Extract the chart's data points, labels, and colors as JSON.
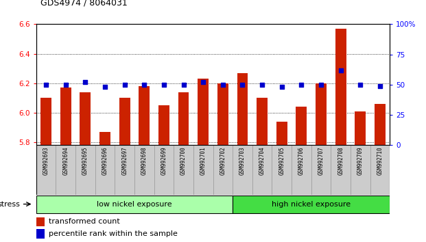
{
  "title": "GDS4974 / 8064031",
  "samples": [
    "GSM992693",
    "GSM992694",
    "GSM992695",
    "GSM992696",
    "GSM992697",
    "GSM992698",
    "GSM992699",
    "GSM992700",
    "GSM992701",
    "GSM992702",
    "GSM992703",
    "GSM992704",
    "GSM992705",
    "GSM992706",
    "GSM992707",
    "GSM992708",
    "GSM992709",
    "GSM992710"
  ],
  "transformed_count": [
    6.1,
    6.17,
    6.14,
    5.87,
    6.1,
    6.18,
    6.05,
    6.14,
    6.23,
    6.2,
    6.27,
    6.1,
    5.94,
    6.04,
    6.2,
    6.57,
    6.01,
    6.06
  ],
  "percentile_rank": [
    50,
    50,
    52,
    48,
    50,
    50,
    50,
    50,
    52,
    50,
    50,
    50,
    48,
    50,
    50,
    62,
    50,
    49
  ],
  "low_nickel_count": 10,
  "high_nickel_count": 8,
  "ymin": 5.78,
  "ymax": 6.6,
  "yticks_left": [
    5.8,
    6.0,
    6.2,
    6.4,
    6.6
  ],
  "yticks_right": [
    0,
    25,
    50,
    75,
    100
  ],
  "bar_color": "#cc2200",
  "marker_color": "#0000cc",
  "low_nickel_color": "#aaffaa",
  "high_nickel_color": "#44dd44",
  "cell_bg_color": "#cccccc",
  "cell_border_color": "#999999",
  "plot_bg": "#ffffff",
  "stress_label": "stress",
  "low_label": "low nickel exposure",
  "high_label": "high nickel exposure",
  "legend_bar": "transformed count",
  "legend_marker": "percentile rank within the sample"
}
